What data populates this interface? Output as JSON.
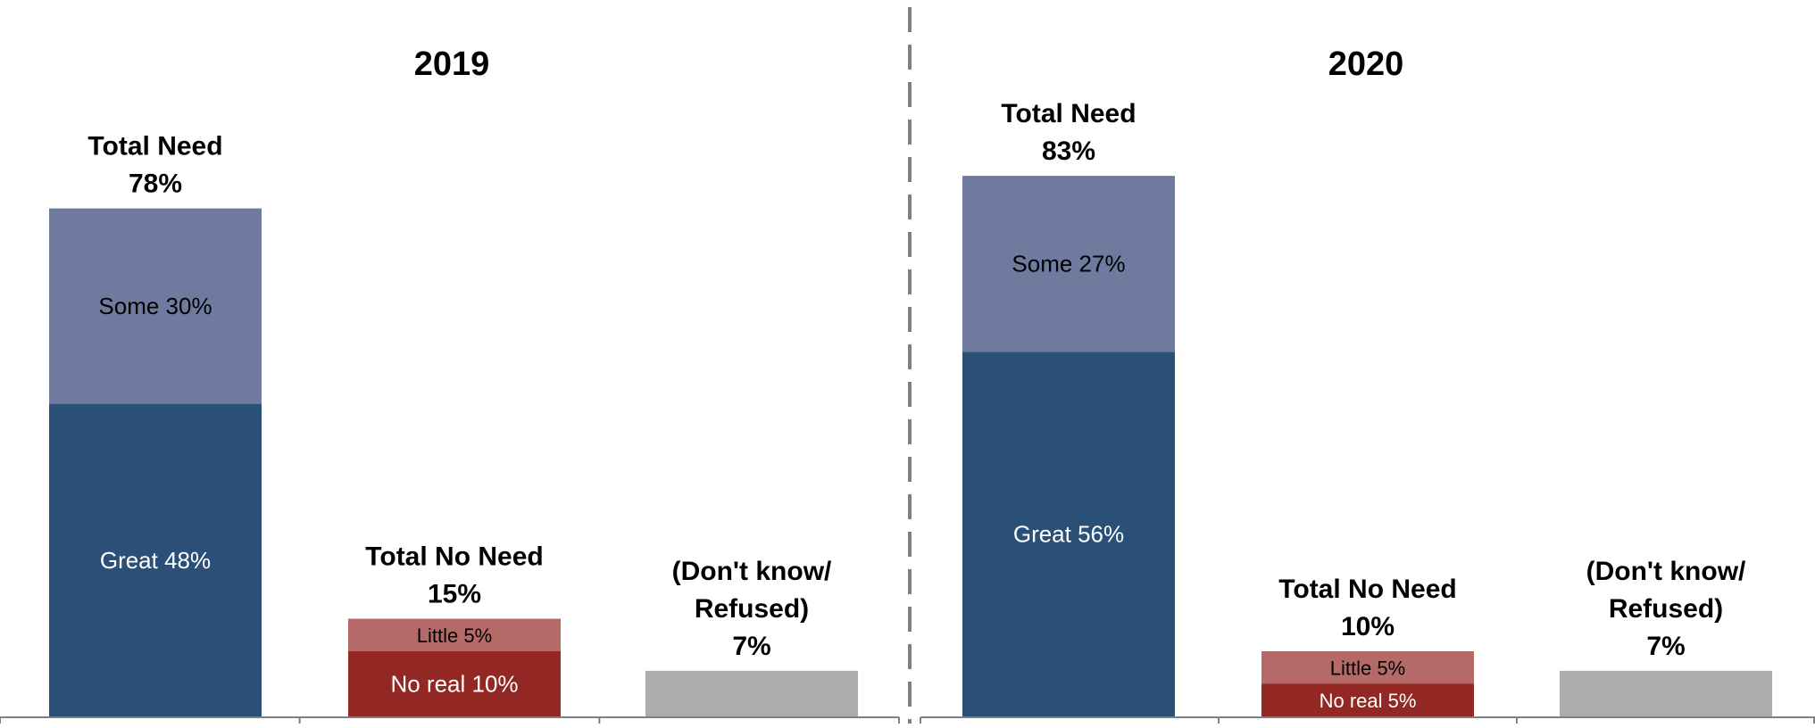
{
  "chart_data": [
    {
      "type": "bar",
      "stacked": true,
      "title": "2019",
      "ylim": [
        0,
        100
      ],
      "grid": false,
      "groups": [
        {
          "label_lines": [
            "Total Need",
            "78%"
          ],
          "total": 78,
          "segments": [
            {
              "label": "Great 48%",
              "value": 48,
              "color": "#2a5078",
              "text_color": "#ffffff"
            },
            {
              "label": "Some 30%",
              "value": 30,
              "color": "#6e7b9f",
              "text_color": "#000000"
            }
          ]
        },
        {
          "label_lines": [
            "Total No Need",
            "15%"
          ],
          "total": 15,
          "segments": [
            {
              "label": "No real 10%",
              "value": 10,
              "color": "#922723",
              "text_color": "#ffffff"
            },
            {
              "label": "Little 5%",
              "value": 5,
              "color": "#b46a67",
              "text_color": "#000000"
            }
          ]
        },
        {
          "label_lines": [
            "(Don't know/",
            "Refused)",
            "7%"
          ],
          "total": 7,
          "segments": [
            {
              "label": "",
              "value": 7,
              "color": "#abacae",
              "text_color": "#000000"
            }
          ]
        }
      ]
    },
    {
      "type": "bar",
      "stacked": true,
      "title": "2020",
      "ylim": [
        0,
        100
      ],
      "grid": false,
      "groups": [
        {
          "label_lines": [
            "Total Need",
            "83%"
          ],
          "total": 83,
          "segments": [
            {
              "label": "Great 56%",
              "value": 56,
              "color": "#2a5078",
              "text_color": "#ffffff"
            },
            {
              "label": "Some 27%",
              "value": 27,
              "color": "#6e7b9f",
              "text_color": "#000000"
            }
          ]
        },
        {
          "label_lines": [
            "Total No Need",
            "10%"
          ],
          "total": 10,
          "segments": [
            {
              "label": "No real 5%",
              "value": 5,
              "color": "#922723",
              "text_color": "#ffffff"
            },
            {
              "label": "Little 5%",
              "value": 5,
              "color": "#b46a67",
              "text_color": "#000000"
            }
          ]
        },
        {
          "label_lines": [
            "(Don't know/",
            "Refused)",
            "7%"
          ],
          "total": 7,
          "segments": [
            {
              "label": "",
              "value": 7,
              "color": "#abacae",
              "text_color": "#000000"
            }
          ]
        }
      ]
    }
  ]
}
